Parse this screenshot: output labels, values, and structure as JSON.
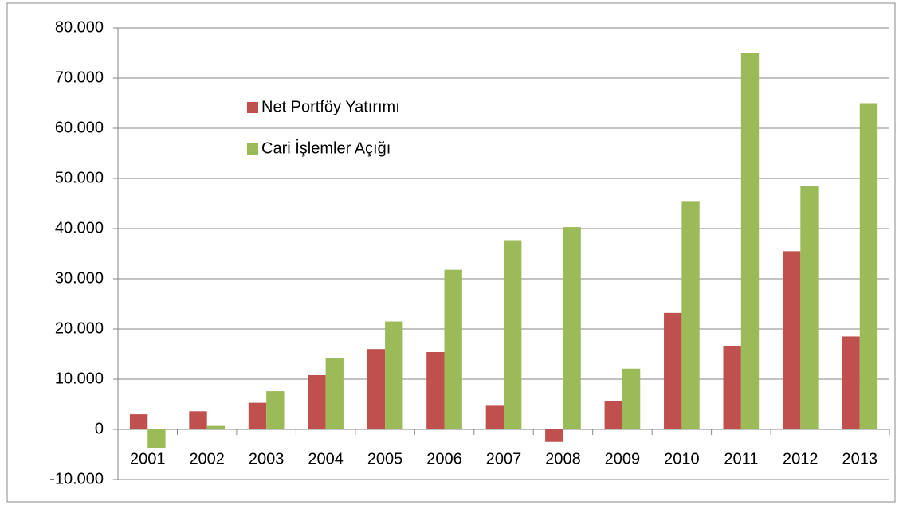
{
  "chart_data": {
    "type": "bar",
    "categories": [
      "2001",
      "2002",
      "2003",
      "2004",
      "2005",
      "2006",
      "2007",
      "2008",
      "2009",
      "2010",
      "2011",
      "2012",
      "2013"
    ],
    "series": [
      {
        "name": "Net Portföy Yatırımı",
        "color": "#c0504d",
        "values": [
          3000,
          3600,
          5300,
          10800,
          16000,
          15400,
          4700,
          -2500,
          5700,
          23200,
          16600,
          35500,
          18500
        ]
      },
      {
        "name": "Cari İşlemler Açığı",
        "color": "#9bbb59",
        "values": [
          -3700,
          700,
          7600,
          14200,
          21500,
          31800,
          37700,
          40300,
          12100,
          45500,
          75000,
          48500,
          65000
        ]
      }
    ],
    "ylim": [
      -10000,
      80000
    ],
    "yticks": [
      {
        "value": -10000,
        "label": "-10.000"
      },
      0,
      {
        "value": 10000,
        "label": "10.000"
      },
      {
        "value": 20000,
        "label": "20.000"
      },
      {
        "value": 30000,
        "label": "30.000"
      },
      {
        "value": 40000,
        "label": "40.000"
      },
      {
        "value": 50000,
        "label": "50.000"
      },
      {
        "value": 60000,
        "label": "60.000"
      },
      {
        "value": 70000,
        "label": "70.000"
      },
      {
        "value": 80000,
        "label": "80.000"
      }
    ],
    "grid": true,
    "legend": "upper left"
  }
}
